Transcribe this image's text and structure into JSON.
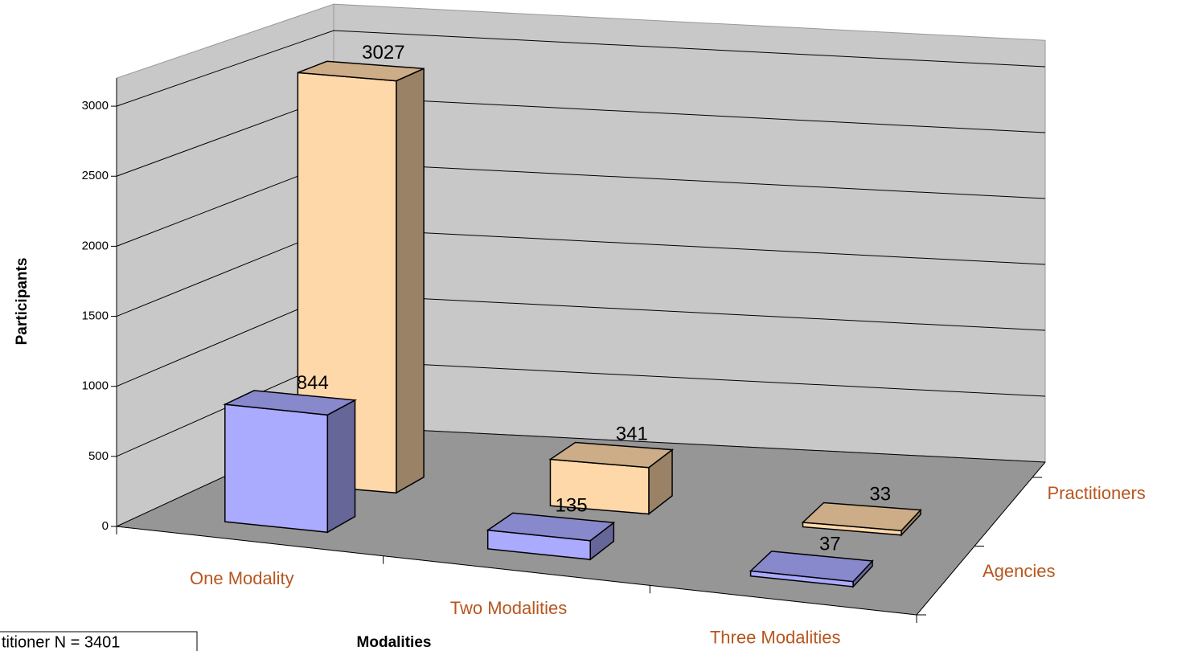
{
  "chart_data": {
    "type": "bar3d",
    "y_axis_label": "Participants",
    "x_axis_label": "Modalities",
    "note": "titioner N = 3401",
    "categories": [
      "One Modality",
      "Two Modalities",
      "Three Modalities"
    ],
    "series": [
      {
        "name": "Agencies",
        "color": "#aaaaff",
        "values": [
          844,
          135,
          37
        ]
      },
      {
        "name": "Practitioners",
        "color": "#ffd8aa",
        "values": [
          3027,
          341,
          33
        ]
      }
    ],
    "ylim": [
      0,
      3200
    ],
    "yticks": [
      0,
      500,
      1000,
      1500,
      2000,
      2500,
      3000
    ],
    "grid": true
  }
}
